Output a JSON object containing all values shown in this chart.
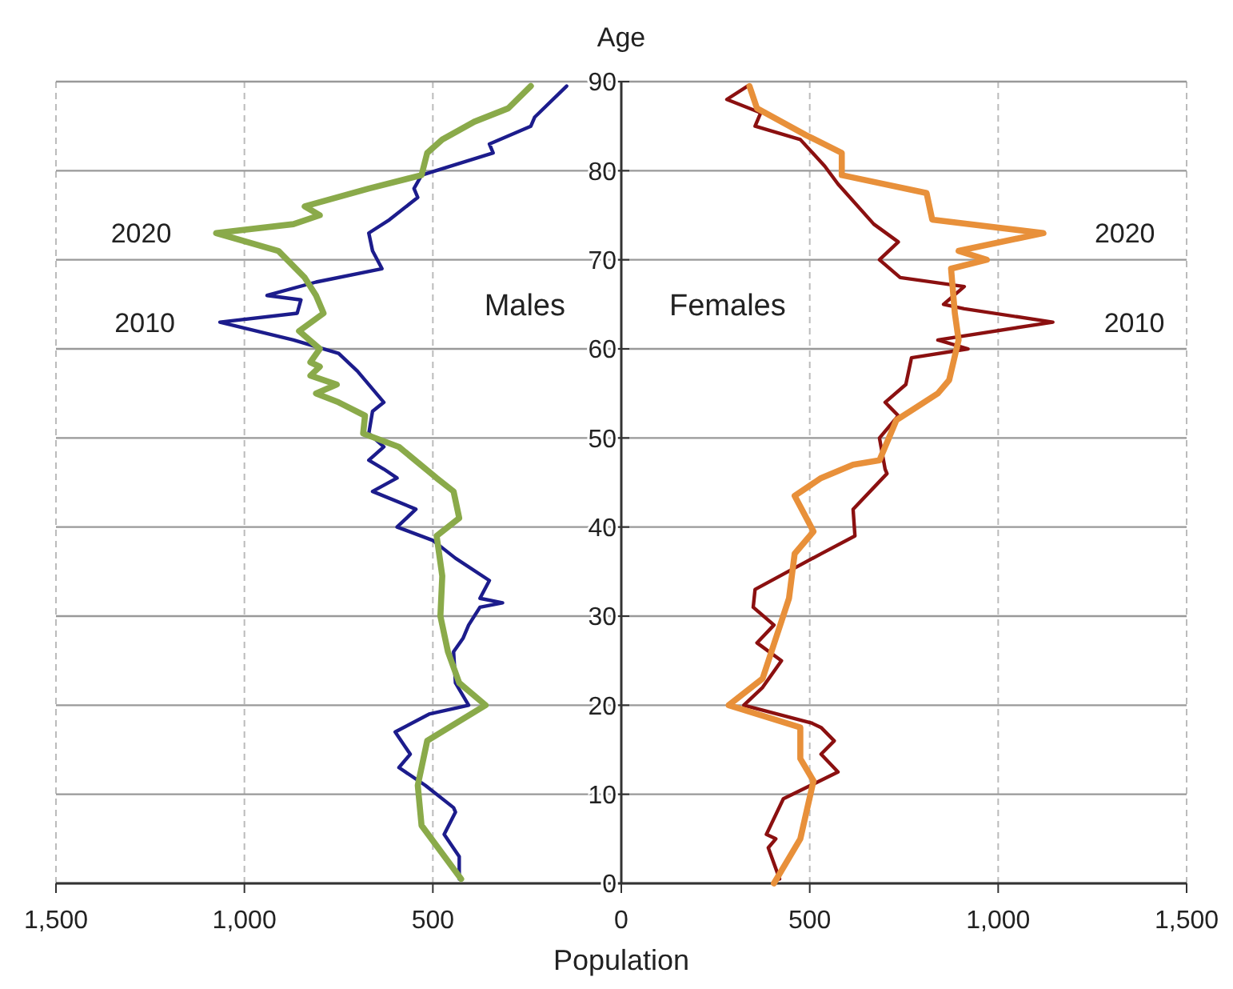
{
  "chart_data": {
    "type": "line",
    "xlabel": "Population",
    "ylabel": "Age",
    "xlim": [
      -1500,
      1500
    ],
    "ylim": [
      0,
      90
    ],
    "xticks": [
      {
        "value": -1500,
        "label": "1,500"
      },
      {
        "value": -1000,
        "label": "1,000"
      },
      {
        "value": -500,
        "label": "500"
      },
      0,
      500,
      {
        "value": 1000,
        "label": "1,000"
      },
      {
        "value": 1500,
        "label": "1,500"
      }
    ],
    "yticks": [
      0,
      10,
      20,
      30,
      40,
      50,
      60,
      70,
      80,
      90
    ],
    "grid": true,
    "marker": "none",
    "line_style": "solid",
    "annotations": [
      "Males",
      "Females"
    ],
    "series": [
      {
        "name": "2010",
        "color": "#1c1c8c",
        "x": [
          -430,
          -430,
          -470,
          -440,
          -445,
          -520,
          -590,
          -560,
          -600,
          -510,
          -405,
          -440,
          -445,
          -420,
          -405,
          -375,
          -315,
          -375,
          -350,
          -440,
          -500,
          -595,
          -545,
          -660,
          -595,
          -630,
          -670,
          -630,
          -670,
          -660,
          -630,
          -700,
          -750,
          -870,
          -1065,
          -860,
          -850,
          -940,
          -810,
          -635,
          -660,
          -670,
          -615,
          -540,
          -550,
          -530,
          -340,
          -350,
          -240,
          -230,
          -145
        ],
        "values": [
          0.5,
          3,
          5.5,
          8,
          8.5,
          11,
          13,
          14.5,
          17,
          19,
          20,
          22.5,
          26,
          27.5,
          29,
          31,
          31.5,
          32,
          34,
          36.5,
          38.5,
          40,
          42,
          44,
          45.5,
          46.5,
          47.5,
          49,
          50.5,
          53,
          54,
          57.5,
          59.5,
          61,
          63,
          64,
          65.5,
          66,
          67.5,
          69,
          71,
          73,
          74.5,
          77,
          78,
          79.5,
          82,
          83,
          85,
          86,
          89.5
        ]
      },
      {
        "name": "2020",
        "color": "#8aaa4a",
        "x": [
          -425,
          -530,
          -540,
          -515,
          -360,
          -430,
          -460,
          -480,
          -475,
          -490,
          -430,
          -445,
          -490,
          -590,
          -685,
          -680,
          -750,
          -810,
          -755,
          -825,
          -800,
          -825,
          -800,
          -855,
          -790,
          -810,
          -840,
          -910,
          -1075,
          -870,
          -800,
          -840,
          -670,
          -530,
          -515,
          -475,
          -390,
          -300,
          -240
        ],
        "values": [
          0.5,
          6.5,
          11,
          16,
          20,
          22.5,
          26,
          30,
          34.5,
          39,
          41,
          44,
          45.5,
          49,
          50.5,
          52.5,
          54,
          55,
          56,
          57,
          58,
          58.5,
          60,
          62,
          64,
          66,
          68,
          71,
          73,
          74,
          75,
          76,
          78,
          79.5,
          82,
          83.5,
          85.5,
          87,
          89.5
        ]
      },
      {
        "name": "2010",
        "color": "#8b1010",
        "x": [
          420,
          390,
          410,
          385,
          430,
          575,
          530,
          565,
          530,
          505,
          325,
          375,
          425,
          360,
          405,
          350,
          355,
          530,
          620,
          615,
          705,
          700,
          685,
          735,
          700,
          755,
          770,
          920,
          840,
          1145,
          910,
          855,
          910,
          740,
          685,
          735,
          670,
          575,
          540,
          475,
          355,
          370,
          280,
          335
        ],
        "values": [
          0.5,
          4,
          5,
          5.5,
          9.5,
          12.5,
          14.5,
          16,
          17.5,
          18,
          20,
          22,
          25,
          27,
          29,
          31,
          33,
          37,
          39,
          42,
          46,
          46.5,
          50,
          52.5,
          54,
          56,
          59,
          60,
          61,
          63,
          64.5,
          65,
          67,
          68,
          70,
          72,
          74,
          78.5,
          80.5,
          83.5,
          85,
          86.5,
          88,
          89.5
        ]
      },
      {
        "name": "2020",
        "color": "#e8903a",
        "x": [
          405,
          475,
          510,
          475,
          475,
          285,
          375,
          445,
          460,
          510,
          460,
          530,
          615,
          685,
          730,
          840,
          870,
          895,
          885,
          875,
          970,
          895,
          1120,
          825,
          810,
          585,
          585,
          490,
          360,
          340
        ],
        "values": [
          0,
          5,
          11.5,
          14,
          17.5,
          20,
          23,
          32,
          37,
          39.5,
          43.5,
          45.5,
          47,
          47.5,
          52,
          55,
          56.5,
          61,
          64,
          69,
          70,
          71,
          73,
          74.5,
          77.5,
          79.5,
          82,
          84,
          87,
          89.5
        ]
      }
    ]
  }
}
